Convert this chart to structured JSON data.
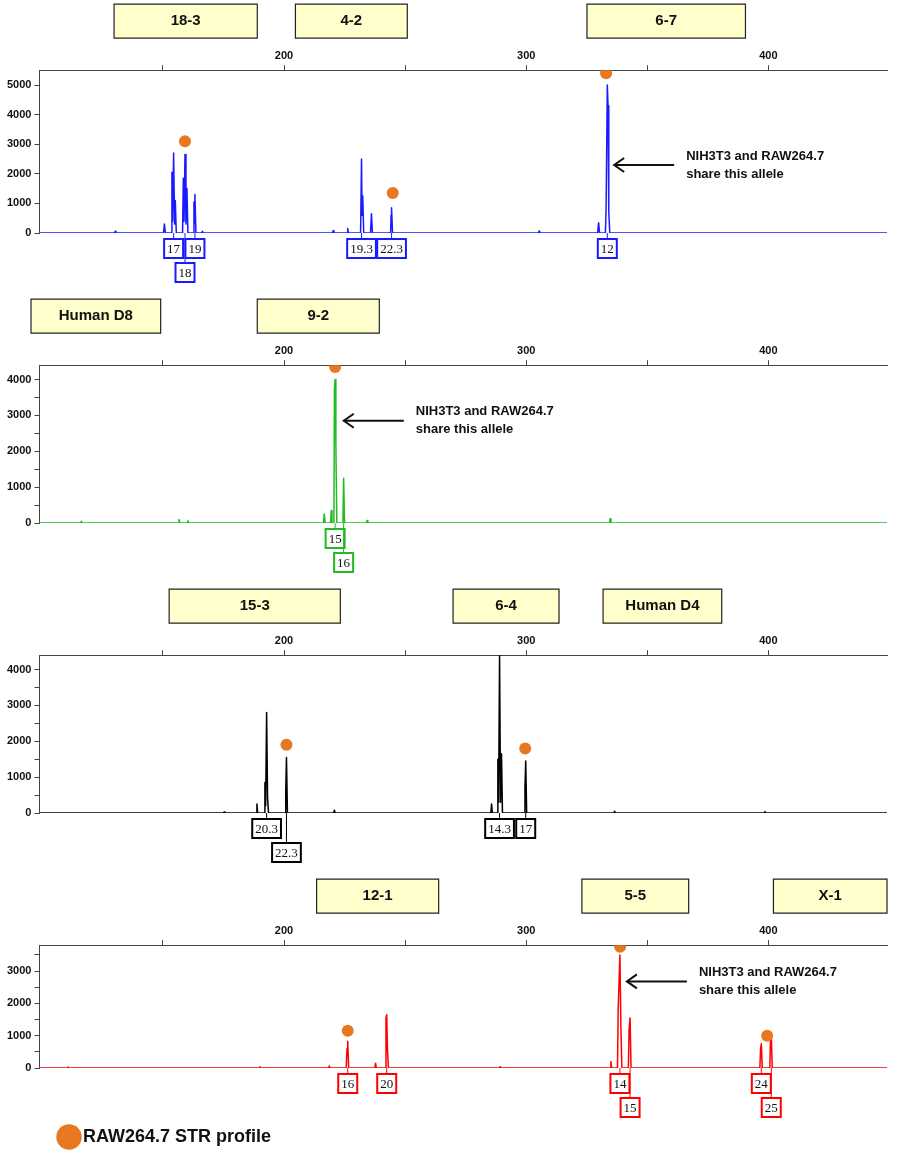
{
  "chart_data": [
    {
      "type": "line",
      "xlim": [
        99,
        449
      ],
      "xticks": [
        {
          "value": 150,
          "label": null
        },
        200,
        {
          "value": 250,
          "label": null
        },
        300,
        {
          "value": 350,
          "label": null
        },
        400
      ],
      "ylim": [
        0,
        5500
      ],
      "yticks": [
        0,
        1000,
        2000,
        3000,
        4000,
        5000
      ],
      "annotations": [
        "18-3",
        "4-2",
        "6-7",
        {
          "text": "17",
          "x": 154.4,
          "y": 0
        },
        {
          "text": "19",
          "x": 163.2,
          "y": 0
        },
        {
          "text": "18",
          "x": 159.1,
          "y": 0
        },
        {
          "text": "19.3",
          "x": 232,
          "y": 0
        },
        {
          "text": "22.3",
          "x": 244.4,
          "y": 0
        },
        {
          "text": "12",
          "x": 333.5,
          "y": 0
        },
        "NIH3T3 and RAW264.7\nshare this allele"
      ],
      "series": [
        {
          "color": "#1a1aff",
          "x": [
            99,
            130,
            130.3,
            130.6,
            150.2,
            150.6,
            151,
            153.4,
            153.7,
            154.0,
            154.4,
            154.8,
            155.1,
            155.5,
            158.1,
            158.4,
            158.7,
            159.1,
            159.5,
            159.9,
            160.3,
            162.5,
            162.8,
            163.0,
            163.2,
            163.6,
            166,
            166.3,
            166.6,
            220,
            220.3,
            220.6,
            226,
            226.3,
            226.6,
            231.6,
            232,
            232.2,
            232.5,
            232.9,
            235.7,
            236.1,
            236.5,
            244,
            244.2,
            244.4,
            244.8,
            305,
            305.4,
            305.8,
            329.5,
            329.9,
            330.3,
            332.7,
            333.0,
            333.5,
            333.8,
            334.1,
            334.5,
            449
          ],
          "values": [
            0,
            0,
            60,
            0,
            0,
            300,
            0,
            0,
            2050,
            400,
            2700,
            300,
            1100,
            0,
            0,
            1850,
            400,
            2650,
            300,
            1500,
            0,
            0,
            1050,
            300,
            1300,
            0,
            0,
            60,
            0,
            0,
            80,
            0,
            0,
            150,
            0,
            0,
            2500,
            600,
            1250,
            0,
            0,
            650,
            0,
            0,
            600,
            850,
            0,
            0,
            70,
            0,
            0,
            350,
            0,
            0,
            800,
            5000,
            4300,
            750,
            0,
            0
          ]
        },
        {
          "type": "scatter",
          "color": "#e87722",
          "x": [
            159.1,
            244.9,
            333
          ],
          "values": [
            3100,
            1350,
            5400
          ]
        }
      ]
    },
    {
      "type": "line",
      "xlim": [
        99,
        449
      ],
      "xticks": [
        {
          "value": 150,
          "label": null
        },
        200,
        {
          "value": 250,
          "label": null
        },
        300,
        {
          "value": 350,
          "label": null
        },
        400
      ],
      "ylim": [
        0,
        4400
      ],
      "yticks": [
        0,
        {
          "value": 500,
          "label": null
        },
        1000,
        {
          "value": 1500,
          "label": null
        },
        2000,
        {
          "value": 2500,
          "label": null
        },
        3000,
        {
          "value": 3500,
          "label": null
        },
        4000
      ],
      "annotations": [
        "Human D8",
        "9-2",
        {
          "text": "15",
          "x": 221.1,
          "y": 0
        },
        {
          "text": "16",
          "x": 224.6,
          "y": 0
        },
        "NIH3T3 and RAW264.7\nshare this allele"
      ],
      "series": [
        {
          "color": "#22bb22",
          "x": [
            99,
            116,
            116.3,
            116.6,
            156.3,
            156.6,
            157,
            160,
            160.3,
            160.6,
            216.3,
            216.6,
            217,
            219.2,
            219.5,
            219.8,
            220.6,
            220.8,
            221.1,
            221.4,
            221.8,
            224.3,
            224.6,
            225,
            234,
            234.3,
            234.6,
            334.4,
            334.7,
            335,
            449
          ],
          "values": [
            0,
            0,
            50,
            0,
            0,
            100,
            0,
            0,
            60,
            0,
            0,
            250,
            0,
            0,
            350,
            0,
            0,
            3750,
            4000,
            2200,
            0,
            0,
            1250,
            0,
            0,
            70,
            0,
            0,
            120,
            0,
            0
          ]
        },
        {
          "type": "scatter",
          "color": "#e87722",
          "x": [
            221.1
          ],
          "values": [
            4350
          ]
        }
      ]
    },
    {
      "type": "line",
      "xlim": [
        99,
        449
      ],
      "xticks": [
        {
          "value": 150,
          "label": null
        },
        200,
        {
          "value": 250,
          "label": null
        },
        300,
        {
          "value": 350,
          "label": null
        },
        400
      ],
      "ylim": [
        0,
        4400
      ],
      "yticks": [
        0,
        {
          "value": 500,
          "label": null
        },
        1000,
        {
          "value": 1500,
          "label": null
        },
        2000,
        {
          "value": 2500,
          "label": null
        },
        3000,
        {
          "value": 3500,
          "label": null
        },
        4000
      ],
      "annotations": [
        "15-3",
        "6-4",
        "Human D4",
        {
          "text": "20.3",
          "x": 192.8,
          "y": 0
        },
        {
          "text": "22.3",
          "x": 201,
          "y": 0
        },
        {
          "text": "14.3",
          "x": 289,
          "y": 0
        },
        {
          "text": "17",
          "x": 299.8,
          "y": 0
        }
      ],
      "series": [
        {
          "color": "#000000",
          "x": [
            99,
            175,
            175.3,
            175.6,
            188.5,
            188.8,
            189.1,
            191.8,
            192.1,
            192.4,
            192.8,
            193.2,
            193.6,
            200.4,
            200.7,
            201,
            201.4,
            220.5,
            220.8,
            221.1,
            285.4,
            285.7,
            286,
            288,
            288.3,
            288.6,
            289,
            289.4,
            289.8,
            290.2,
            299.2,
            299.5,
            299.8,
            300.2,
            336.2,
            336.5,
            336.8,
            398.3,
            398.6,
            398.9,
            449
          ],
          "values": [
            0,
            0,
            30,
            0,
            0,
            250,
            0,
            0,
            850,
            200,
            2800,
            400,
            0,
            0,
            600,
            1550,
            0,
            0,
            80,
            0,
            0,
            250,
            0,
            0,
            1500,
            300,
            4400,
            300,
            1650,
            0,
            0,
            700,
            1450,
            0,
            0,
            50,
            0,
            0,
            40,
            0,
            0
          ]
        },
        {
          "type": "scatter",
          "color": "#e87722",
          "x": [
            201,
            299.6
          ],
          "values": [
            1900,
            1800
          ]
        }
      ]
    },
    {
      "type": "line",
      "xlim": [
        99,
        449
      ],
      "xticks": [
        {
          "value": 150,
          "label": null
        },
        200,
        {
          "value": 250,
          "label": null
        },
        300,
        {
          "value": 350,
          "label": null
        },
        400
      ],
      "ylim": [
        0,
        3800
      ],
      "yticks": [
        0,
        {
          "value": 500,
          "label": null
        },
        1000,
        {
          "value": 1500,
          "label": null
        },
        2000,
        {
          "value": 2500,
          "label": null
        },
        3000,
        {
          "value": 3500,
          "label": null
        }
      ],
      "legend": "bottom",
      "annotations": [
        "12-1",
        "5-5",
        "X-1",
        {
          "text": "16",
          "x": 226.3,
          "y": 0
        },
        {
          "text": "20",
          "x": 242.4,
          "y": 0
        },
        {
          "text": "14",
          "x": 338.7,
          "y": 0
        },
        {
          "text": "15",
          "x": 342.9,
          "y": 0
        },
        {
          "text": "24",
          "x": 397.1,
          "y": 0
        },
        {
          "text": "25",
          "x": 401.2,
          "y": 0
        },
        "NIH3T3 and RAW264.7\nshare this allele"
      ],
      "series": [
        {
          "color": "#ff0000",
          "x": [
            99,
            110.6,
            110.9,
            111.2,
            189.7,
            190,
            190.3,
            218.4,
            218.7,
            219,
            225.7,
            226,
            226.3,
            226.7,
            237.5,
            237.8,
            238.1,
            241.8,
            242.1,
            242.4,
            242.7,
            243.1,
            289,
            289.3,
            289.6,
            334.7,
            335,
            335.3,
            337.7,
            338,
            338.7,
            339.1,
            339.5,
            342.2,
            342.5,
            342.9,
            343.3,
            396.5,
            396.8,
            397.1,
            397.5,
            400.6,
            400.9,
            401.2,
            401.6,
            449
          ],
          "values": [
            0,
            0,
            30,
            0,
            0,
            40,
            0,
            0,
            60,
            0,
            0,
            600,
            830,
            0,
            0,
            150,
            0,
            0,
            1550,
            1650,
            600,
            0,
            0,
            40,
            0,
            0,
            200,
            0,
            0,
            1850,
            3500,
            1300,
            0,
            0,
            1200,
            1550,
            0,
            0,
            600,
            750,
            0,
            0,
            950,
            1100,
            0,
            0
          ]
        },
        {
          "type": "scatter",
          "name": "RAW264.7 STR profile",
          "color": "#e87722",
          "x": [
            226.3,
            338.8,
            399.5
          ],
          "values": [
            1150,
            3750,
            1000
          ]
        }
      ]
    }
  ]
}
